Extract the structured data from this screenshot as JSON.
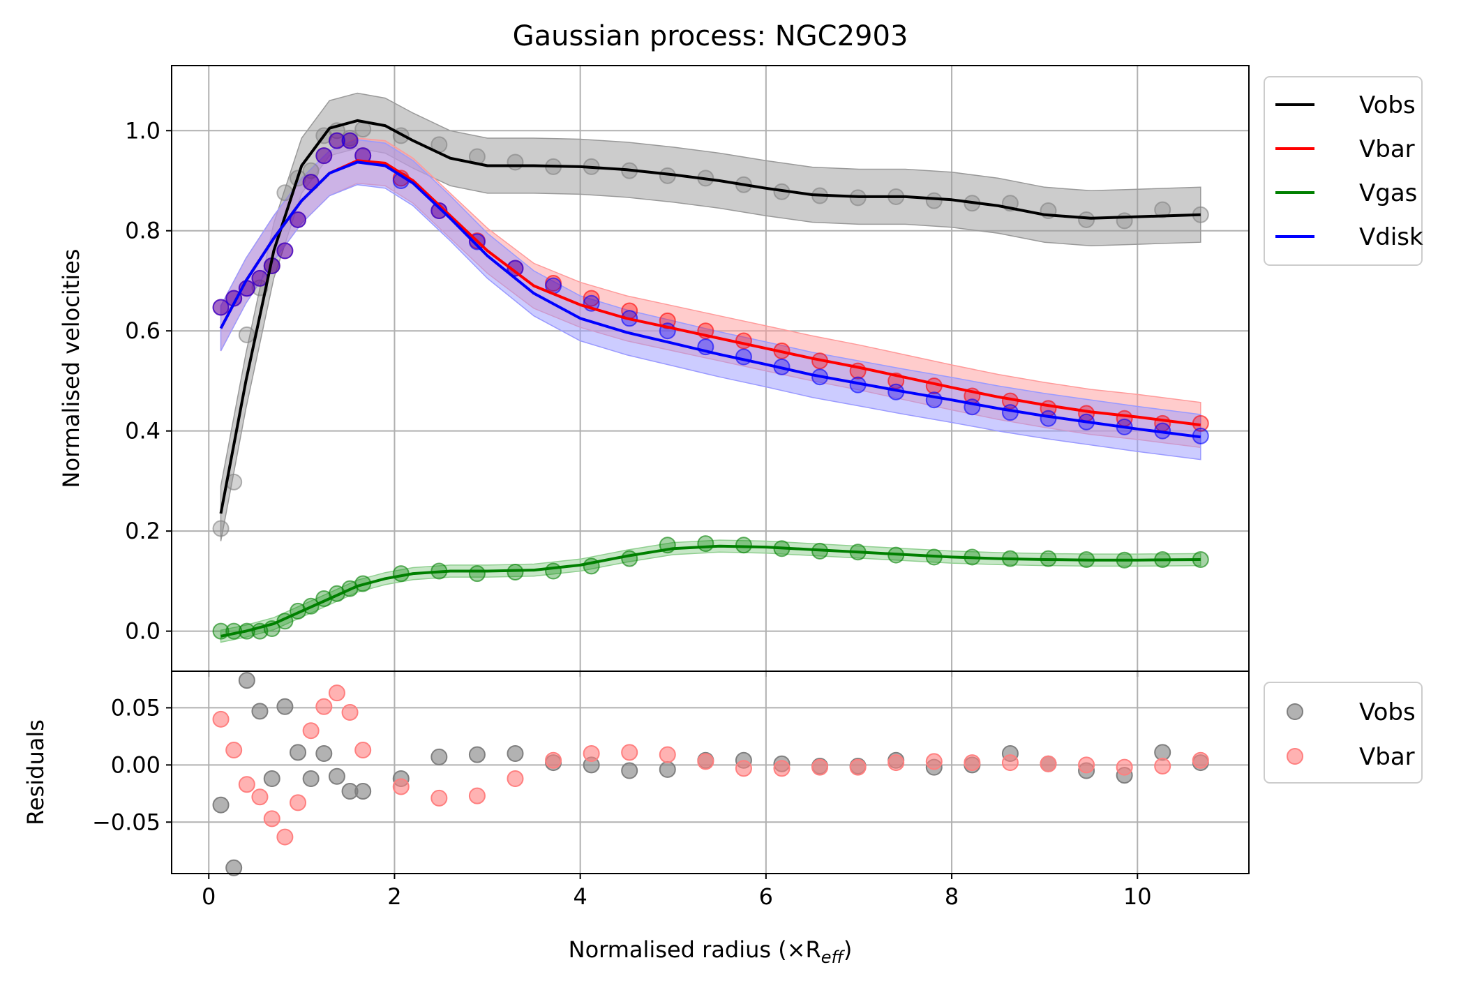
{
  "chart_data": [
    {
      "type": "line",
      "title": "Gaussian process: NGC2903",
      "xlabel": "",
      "ylabel": "Normalised velocities",
      "xlim": [
        -0.4,
        11.2
      ],
      "ylim": [
        -0.08,
        1.13
      ],
      "xticks": [
        0,
        2,
        4,
        6,
        8,
        10
      ],
      "yticks": [
        0.0,
        0.2,
        0.4,
        0.6,
        0.8,
        1.0
      ],
      "ytick_labels": [
        "0.0",
        "0.2",
        "0.4",
        "0.6",
        "0.8",
        "1.0"
      ],
      "grid": true,
      "legend_position": "outside upper right",
      "x": [
        0.13,
        0.27,
        0.41,
        0.55,
        0.68,
        0.82,
        0.96,
        1.1,
        1.24,
        1.38,
        1.52,
        1.66,
        2.07,
        2.48,
        2.89,
        3.3,
        3.71,
        4.12,
        4.53,
        4.94,
        5.35,
        5.76,
        6.17,
        6.58,
        6.99,
        7.4,
        7.81,
        8.22,
        8.63,
        9.04,
        9.45,
        9.86,
        10.27,
        10.68
      ],
      "series": [
        {
          "name": "Vobs",
          "color": "#000000",
          "band_color": "#999999",
          "points": [
            0.205,
            0.298,
            0.592,
            0.686,
            0.73,
            0.876,
            0.905,
            0.92,
            0.99,
            1.0,
            0.985,
            1.003,
            0.99,
            0.972,
            0.948,
            0.937,
            0.928,
            0.928,
            0.92,
            0.91,
            0.905,
            0.892,
            0.878,
            0.87,
            0.866,
            0.868,
            0.86,
            0.855,
            0.855,
            0.84,
            0.822,
            0.82,
            0.842,
            0.832
          ],
          "fit_x": [
            0.13,
            0.4,
            0.7,
            1.0,
            1.3,
            1.6,
            1.9,
            2.2,
            2.6,
            3.0,
            3.5,
            4.0,
            4.5,
            5.0,
            5.5,
            6.0,
            6.5,
            7.0,
            7.5,
            8.0,
            8.5,
            9.0,
            9.5,
            10.0,
            10.68
          ],
          "fit": [
            0.235,
            0.5,
            0.76,
            0.93,
            1.005,
            1.02,
            1.01,
            0.98,
            0.945,
            0.93,
            0.93,
            0.928,
            0.922,
            0.912,
            0.9,
            0.885,
            0.872,
            0.868,
            0.868,
            0.862,
            0.85,
            0.832,
            0.825,
            0.828,
            0.832
          ],
          "band_halfwidth": 0.055
        },
        {
          "name": "Vbar",
          "color": "#ff0000",
          "band_color": "#ff9a9a",
          "points": [
            0.647,
            0.665,
            0.685,
            0.705,
            0.73,
            0.76,
            0.822,
            0.897,
            0.95,
            0.98,
            0.98,
            0.95,
            0.905,
            0.84,
            0.78,
            0.725,
            0.695,
            0.665,
            0.64,
            0.62,
            0.6,
            0.58,
            0.56,
            0.54,
            0.52,
            0.5,
            0.49,
            0.47,
            0.46,
            0.445,
            0.435,
            0.425,
            0.415,
            0.415
          ],
          "fit_x": [
            0.13,
            0.4,
            0.7,
            1.0,
            1.3,
            1.6,
            1.9,
            2.2,
            2.6,
            3.0,
            3.5,
            4.0,
            4.5,
            5.0,
            5.5,
            6.0,
            6.5,
            7.0,
            7.5,
            8.0,
            8.5,
            9.0,
            9.5,
            10.0,
            10.68
          ],
          "fit": [
            0.605,
            0.7,
            0.785,
            0.86,
            0.915,
            0.94,
            0.935,
            0.9,
            0.83,
            0.76,
            0.69,
            0.652,
            0.625,
            0.605,
            0.585,
            0.565,
            0.545,
            0.527,
            0.507,
            0.487,
            0.468,
            0.452,
            0.438,
            0.428,
            0.412
          ],
          "band_halfwidth": 0.045
        },
        {
          "name": "Vgas",
          "color": "#008000",
          "band_color": "#8fcf8f",
          "points": [
            0.0,
            0.0,
            0.0,
            0.0,
            0.005,
            0.02,
            0.04,
            0.05,
            0.065,
            0.075,
            0.085,
            0.095,
            0.115,
            0.12,
            0.115,
            0.118,
            0.12,
            0.13,
            0.145,
            0.172,
            0.175,
            0.172,
            0.165,
            0.16,
            0.158,
            0.152,
            0.148,
            0.148,
            0.145,
            0.145,
            0.143,
            0.142,
            0.143,
            0.143
          ],
          "fit_x": [
            0.13,
            0.4,
            0.7,
            1.0,
            1.3,
            1.6,
            1.9,
            2.2,
            2.6,
            3.0,
            3.5,
            4.0,
            4.5,
            5.0,
            5.5,
            6.0,
            6.5,
            7.0,
            7.5,
            8.0,
            8.5,
            9.0,
            9.5,
            10.0,
            10.68
          ],
          "fit": [
            -0.01,
            0.0,
            0.015,
            0.04,
            0.065,
            0.09,
            0.105,
            0.115,
            0.12,
            0.12,
            0.122,
            0.132,
            0.15,
            0.165,
            0.17,
            0.168,
            0.163,
            0.158,
            0.153,
            0.148,
            0.145,
            0.143,
            0.142,
            0.142,
            0.143
          ],
          "band_halfwidth": 0.012
        },
        {
          "name": "Vdisk",
          "color": "#0000ff",
          "band_color": "#9a9aff",
          "points": [
            0.647,
            0.665,
            0.685,
            0.705,
            0.73,
            0.76,
            0.822,
            0.897,
            0.95,
            0.98,
            0.98,
            0.95,
            0.9,
            0.84,
            0.778,
            0.725,
            0.69,
            0.655,
            0.625,
            0.6,
            0.568,
            0.548,
            0.528,
            0.508,
            0.492,
            0.478,
            0.462,
            0.448,
            0.437,
            0.425,
            0.418,
            0.408,
            0.4,
            0.39
          ],
          "fit_x": [
            0.13,
            0.4,
            0.7,
            1.0,
            1.3,
            1.6,
            1.9,
            2.2,
            2.6,
            3.0,
            3.5,
            4.0,
            4.5,
            5.0,
            5.5,
            6.0,
            6.5,
            7.0,
            7.5,
            8.0,
            8.5,
            9.0,
            9.5,
            10.0,
            10.68
          ],
          "fit": [
            0.605,
            0.7,
            0.785,
            0.86,
            0.915,
            0.937,
            0.93,
            0.895,
            0.825,
            0.75,
            0.675,
            0.625,
            0.597,
            0.575,
            0.553,
            0.533,
            0.512,
            0.495,
            0.478,
            0.462,
            0.445,
            0.43,
            0.417,
            0.404,
            0.388
          ],
          "band_halfwidth": 0.045
        }
      ]
    },
    {
      "type": "scatter",
      "title": "",
      "xlabel": "Normalised radius (×R",
      "xlabel_subscript": "eff",
      "xlabel_suffix": ")",
      "ylabel": "Residuals",
      "xlim": [
        -0.4,
        11.2
      ],
      "ylim": [
        -0.095,
        0.082
      ],
      "xticks": [
        0,
        2,
        4,
        6,
        8,
        10
      ],
      "xtick_labels": [
        "0",
        "2",
        "4",
        "6",
        "8",
        "10"
      ],
      "yticks": [
        -0.05,
        0.0,
        0.05
      ],
      "ytick_labels": [
        "−0.05",
        "0.00",
        "0.05"
      ],
      "grid": true,
      "legend_position": "outside upper right",
      "x": [
        0.13,
        0.27,
        0.41,
        0.55,
        0.68,
        0.82,
        0.96,
        1.1,
        1.24,
        1.38,
        1.52,
        1.66,
        2.07,
        2.48,
        2.89,
        3.3,
        3.71,
        4.12,
        4.53,
        4.94,
        5.35,
        5.76,
        6.17,
        6.58,
        6.99,
        7.4,
        7.81,
        8.22,
        8.63,
        9.04,
        9.45,
        9.86,
        10.27,
        10.68
      ],
      "series": [
        {
          "name": "Vobs",
          "color": "#7f7f7f",
          "values": [
            -0.035,
            -0.09,
            0.074,
            0.047,
            -0.012,
            0.051,
            0.011,
            -0.012,
            0.01,
            -0.01,
            -0.023,
            -0.023,
            -0.012,
            0.007,
            0.009,
            0.01,
            0.002,
            0.0,
            -0.005,
            -0.004,
            0.004,
            0.004,
            0.001,
            -0.001,
            -0.001,
            0.004,
            -0.002,
            0.0,
            0.01,
            0.001,
            -0.005,
            -0.009,
            0.011,
            0.002
          ]
        },
        {
          "name": "Vbar",
          "color": "#ff7f7f",
          "values": [
            0.04,
            0.013,
            -0.017,
            -0.028,
            -0.047,
            -0.063,
            -0.033,
            0.03,
            0.051,
            0.063,
            0.046,
            0.013,
            -0.019,
            -0.029,
            -0.027,
            -0.012,
            0.004,
            0.01,
            0.011,
            0.009,
            0.003,
            -0.003,
            -0.003,
            -0.002,
            -0.002,
            0.002,
            0.003,
            0.002,
            0.002,
            0.001,
            0.0,
            -0.002,
            -0.001,
            0.004
          ]
        }
      ]
    }
  ]
}
